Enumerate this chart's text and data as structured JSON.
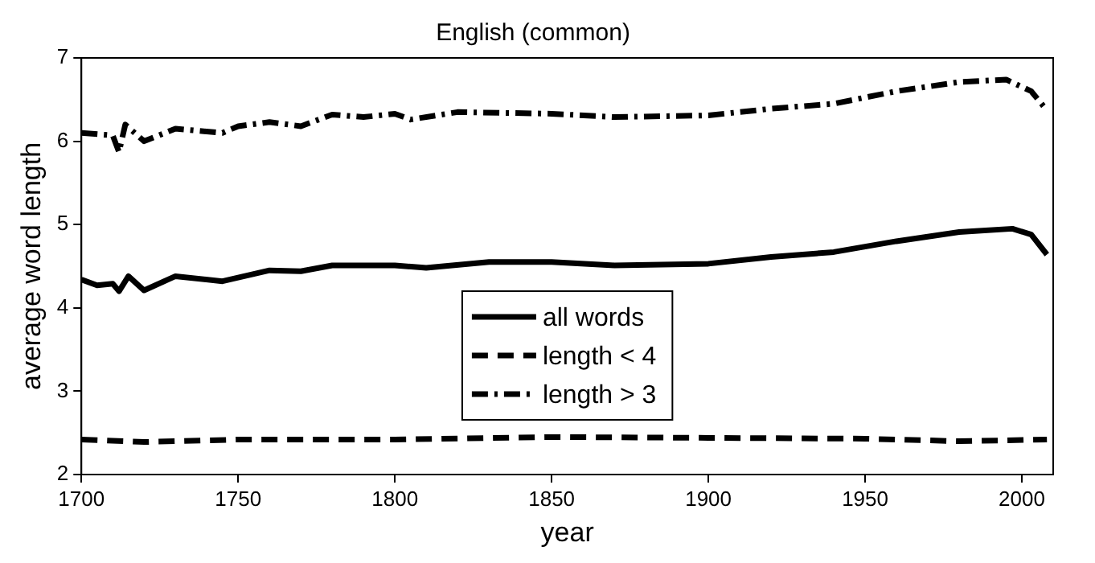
{
  "chart_data": {
    "type": "line",
    "title": "English (common)",
    "xlabel": "year",
    "ylabel": "average word length",
    "xlim": [
      1700,
      2010
    ],
    "xticks": [
      1700,
      1750,
      1800,
      1850,
      1900,
      1950,
      2000
    ],
    "ylim": [
      2,
      7
    ],
    "yticks": [
      2,
      3,
      4,
      5,
      6,
      7
    ],
    "grid": false,
    "legend": "bottom",
    "marker": "none",
    "series": [
      {
        "name": "all words",
        "color": "#000000",
        "line_style": "solid",
        "x": [
          1700,
          1705,
          1710,
          1712,
          1715,
          1720,
          1730,
          1745,
          1760,
          1770,
          1780,
          1800,
          1810,
          1830,
          1850,
          1870,
          1900,
          1920,
          1940,
          1960,
          1980,
          1997,
          2003,
          2008
        ],
        "values": [
          4.34,
          4.27,
          4.29,
          4.2,
          4.38,
          4.21,
          4.38,
          4.32,
          4.45,
          4.44,
          4.51,
          4.51,
          4.48,
          4.55,
          4.55,
          4.51,
          4.53,
          4.61,
          4.67,
          4.8,
          4.91,
          4.95,
          4.88,
          4.64
        ]
      },
      {
        "name": "length < 4",
        "color": "#000000",
        "line_style": "dashed",
        "x": [
          1700,
          1720,
          1750,
          1800,
          1850,
          1900,
          1950,
          1980,
          2008
        ],
        "values": [
          2.42,
          2.39,
          2.42,
          2.42,
          2.45,
          2.44,
          2.43,
          2.4,
          2.42
        ]
      },
      {
        "name": "length > 3",
        "color": "#000000",
        "line_style": "dashdot",
        "x": [
          1700,
          1710,
          1712,
          1714,
          1720,
          1730,
          1745,
          1750,
          1760,
          1770,
          1780,
          1790,
          1800,
          1805,
          1820,
          1850,
          1870,
          1900,
          1920,
          1940,
          1960,
          1980,
          1995,
          2003,
          2008
        ],
        "values": [
          6.1,
          6.07,
          5.87,
          6.2,
          6.0,
          6.15,
          6.1,
          6.18,
          6.23,
          6.18,
          6.32,
          6.29,
          6.33,
          6.26,
          6.35,
          6.33,
          6.29,
          6.31,
          6.39,
          6.45,
          6.6,
          6.71,
          6.74,
          6.6,
          6.37
        ]
      }
    ]
  }
}
